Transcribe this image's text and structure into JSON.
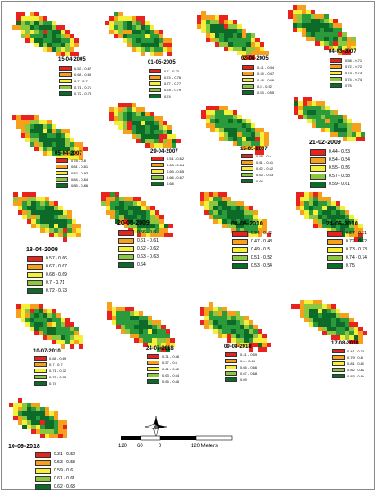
{
  "colors": [
    "#e8231f",
    "#f7a01c",
    "#f5ef3a",
    "#8dc63f",
    "#2a9a3a",
    "#0d6b2a"
  ],
  "panels": [
    {
      "date": "15-04-2005",
      "legend": [
        "0.53 - 0.67",
        "0.68 - 0.69",
        "0.7 - 0.7",
        "0.71 - 0.71",
        "0.72 - 0.73"
      ]
    },
    {
      "date": "01-05-2005",
      "legend": [
        "0.7 - 0.73",
        "0.74 - 0.76",
        "0.77 - 0.77",
        "0.78 - 0.79",
        "0.74"
      ]
    },
    {
      "date": "02-06-2005",
      "legend": [
        "0.41 - 0.44",
        "0.45 - 0.47",
        "0.48 - 0.49",
        "0.5 - 0.52",
        "0.53 - 0.55"
      ]
    },
    {
      "date": "04-03-2007",
      "legend": [
        "0.58 - 0.71",
        "0.72 - 0.72",
        "0.73 - 0.73",
        "0.74 - 0.74",
        "0.75"
      ]
    },
    {
      "date": "05-04-2007",
      "legend": [
        "0.78 - 0.8",
        "0.81 - 0.81",
        "0.82 - 0.83",
        "0.84 - 0.84",
        "0.85 - 0.86"
      ]
    },
    {
      "date": "29-04-2007",
      "legend": [
        "0.51 - 0.62",
        "0.63 - 0.64",
        "0.65 - 0.65",
        "0.66 - 0.67",
        "0.68"
      ]
    },
    {
      "date": "15-05-2007",
      "legend": [
        "0.58 - 0.6",
        "0.61 - 0.61",
        "0.62 - 0.62",
        "0.63 - 0.63",
        "0.64"
      ]
    },
    {
      "date": "21-02-2009",
      "legend": [
        "0.44 - 0.53",
        "0.54 - 0.54",
        "0.55 - 0.56",
        "0.57 - 0.58",
        "0.59 - 0.61"
      ]
    },
    {
      "date": "18-04-2009",
      "legend": [
        "0.57 - 0.66",
        "0.67 - 0.67",
        "0.68 - 0.69",
        "0.7 - 0.71",
        "0.72 - 0.73"
      ]
    },
    {
      "date": "20-05-2009",
      "legend": [
        "0.56 - 0.6",
        "0.61 - 0.61",
        "0.62 - 0.62",
        "0.63 - 0.63",
        "0.64"
      ]
    },
    {
      "date": "08-06-2010",
      "legend": [
        "0.34 - 0.46",
        "0.47 - 0.48",
        "0.49 - 0.5",
        "0.51 - 0.52",
        "0.53 - 0.54"
      ]
    },
    {
      "date": "24-06-2010",
      "legend": [
        "0.67 - 0.71",
        "0.72 - 0.72",
        "0.73 - 0.73",
        "0.74 - 0.74",
        "0.75"
      ]
    },
    {
      "date": "10-07-2010",
      "legend": [
        "0.68 - 0.69",
        "0.7 - 0.7",
        "0.71 - 0.72",
        "0.73 - 0.73",
        "0.74"
      ]
    },
    {
      "date": "24-07-2018",
      "legend": [
        "0.31 - 0.56",
        "0.57 - 0.6",
        "0.61 - 0.62",
        "0.63 - 0.64",
        "0.65 - 0.66"
      ]
    },
    {
      "date": "09-08-2018",
      "legend": [
        "0.41 - 0.59",
        "0.6 - 0.64",
        "0.65 - 0.66",
        "0.67 - 0.68",
        "0.69"
      ]
    },
    {
      "date": "17-08-2018",
      "legend": [
        "0.41 - 0.78",
        "0.79 - 0.8",
        "0.81 - 0.81",
        "0.82 - 0.82",
        "0.83 - 0.84"
      ]
    },
    {
      "date": "10-09-2018",
      "legend": [
        "0.31 - 0.52",
        "0.53 - 0.58",
        "0.59 - 0.6",
        "0.61 - 0.61",
        "0.62 - 0.63"
      ]
    }
  ],
  "scale": {
    "labels": [
      "120",
      "60",
      "0",
      "120 Meters"
    ]
  },
  "north_arrow": {
    "label": "N"
  }
}
